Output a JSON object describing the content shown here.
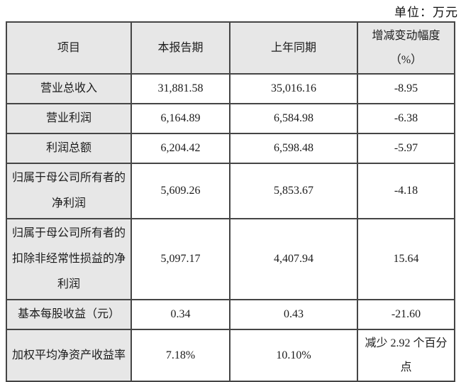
{
  "unit_label": "单位：万元",
  "table": {
    "headers": {
      "item": "项目",
      "current_period": "本报告期",
      "prior_period": "上年同期",
      "change": "增减变动幅度\n（%）"
    },
    "rows": [
      {
        "item": "营业总收入",
        "current": "31,881.58",
        "prior": "35,016.16",
        "change": "-8.95"
      },
      {
        "item": "营业利润",
        "current": "6,164.89",
        "prior": "6,584.98",
        "change": "-6.38"
      },
      {
        "item": "利润总额",
        "current": "6,204.42",
        "prior": "6,598.48",
        "change": "-5.97"
      },
      {
        "item": "归属于母公司所有者的净利润",
        "current": "5,609.26",
        "prior": "5,853.67",
        "change": "-4.18"
      },
      {
        "item": "归属于母公司所有者的扣除非经常性损益的净利润",
        "current": "5,097.17",
        "prior": "4,407.94",
        "change": "15.64"
      },
      {
        "item": "基本每股收益（元）",
        "current": "0.34",
        "prior": "0.43",
        "change": "-21.60"
      },
      {
        "item": "加权平均净资产收益率",
        "current": "7.18%",
        "prior": "10.10%",
        "change": "减少 2.92 个百分点"
      }
    ]
  },
  "colors": {
    "cell_gray": "#e7e7e7",
    "border": "#454545",
    "text": "#1c1c1c",
    "background": "#ffffff"
  }
}
